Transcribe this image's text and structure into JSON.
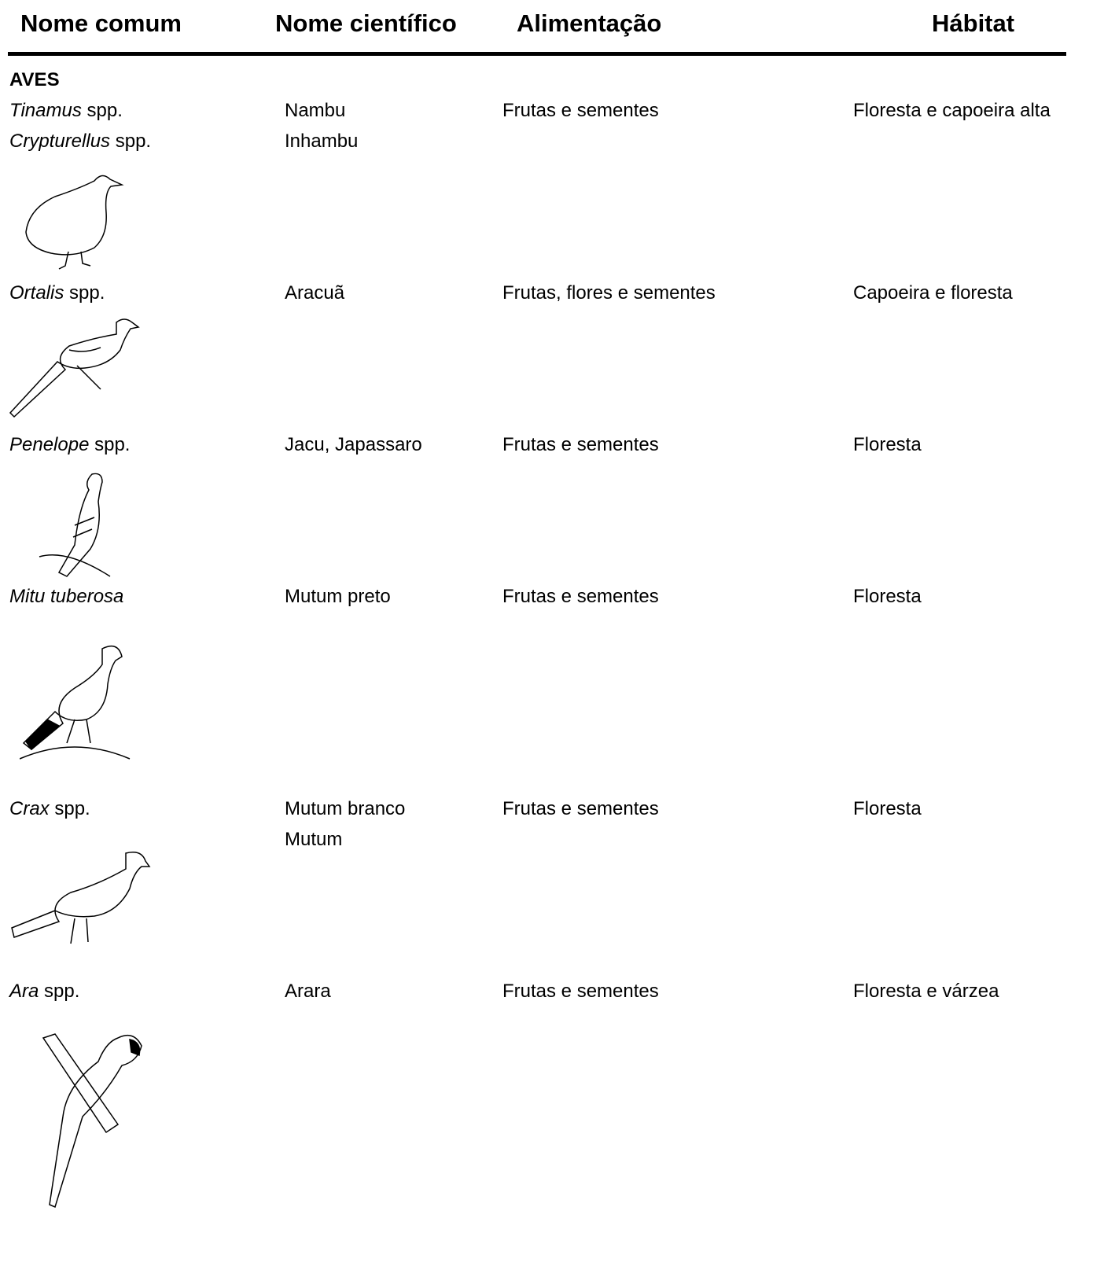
{
  "header": {
    "columns": [
      "Nome comum",
      "Nome científico",
      "Alimentação",
      "Hábitat"
    ]
  },
  "section": "AVES",
  "rows": [
    {
      "genus": "Tinamus",
      "qualifier": "spp.",
      "common": "Nambu",
      "food": "Frutas e sementes",
      "habitat": "Floresta e capoeira alta"
    },
    {
      "genus": "Crypturellus",
      "qualifier": "spp.",
      "common": "Inhambu"
    },
    {
      "genus": "Ortalis",
      "qualifier": "spp.",
      "common": "Aracuã",
      "food": "Frutas, flores e sementes",
      "habitat": "Capoeira e floresta"
    },
    {
      "genus": "Penelope",
      "qualifier": "spp.",
      "common": "Jacu, Japassaro",
      "food": "Frutas e sementes",
      "habitat": "Floresta"
    },
    {
      "genus": "Mitu tuberosa",
      "common": "Mutum preto",
      "food": "Frutas e sementes",
      "habitat": "Floresta"
    },
    {
      "genus": "Crax",
      "qualifier": "spp.",
      "common": "Mutum branco",
      "food": "Frutas e sementes",
      "habitat": "Floresta"
    },
    {
      "common": "Mutum"
    },
    {
      "genus": "Ara",
      "qualifier": "spp.",
      "common": "Arara",
      "food": "Frutas e sementes",
      "habitat": "Floresta e várzea"
    }
  ]
}
